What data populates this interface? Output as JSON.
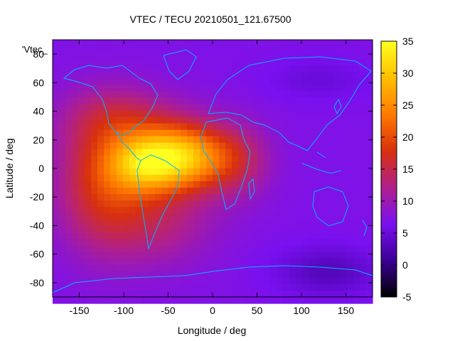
{
  "chart_data": {
    "type": "heatmap",
    "title": "VTEC / TECU 20210501_121.67500",
    "xlabel": "Longitude / deg",
    "ylabel": "Latitude / deg",
    "xlim": [
      -180,
      180
    ],
    "ylim": [
      -90,
      90
    ],
    "xticks": [
      -150,
      -100,
      -50,
      0,
      50,
      100,
      150
    ],
    "yticks": [
      -80,
      -60,
      -40,
      -20,
      0,
      20,
      40,
      60,
      80
    ],
    "colorbar": {
      "range": [
        -5,
        35
      ],
      "ticks": [
        -5,
        0,
        5,
        10,
        15,
        20,
        25,
        30,
        35
      ],
      "colors": [
        "#000000",
        "#3b0096",
        "#7a10f0",
        "#b0208a",
        "#d8300e",
        "#ff7a00",
        "#ffbf00",
        "#ffff20"
      ]
    },
    "key_label": "'Vtec_",
    "background_level": 7,
    "blobs": [
      {
        "lon": -35,
        "lat": 8,
        "slon": 38,
        "slat": 16,
        "amp": 22
      },
      {
        "lon": -80,
        "lat": 3,
        "slon": 28,
        "slat": 14,
        "amp": 12
      },
      {
        "lon": -125,
        "lat": -8,
        "slon": 35,
        "slat": 32,
        "amp": 10
      },
      {
        "lon": -65,
        "lat": -35,
        "slon": 45,
        "slat": 22,
        "amp": 6
      },
      {
        "lon": -100,
        "lat": 35,
        "slon": 45,
        "slat": 15,
        "amp": 6
      },
      {
        "lon": 30,
        "lat": 5,
        "slon": 25,
        "slat": 18,
        "amp": 5
      },
      {
        "lon": 130,
        "lat": -72,
        "slon": 40,
        "slat": 12,
        "amp": -4
      },
      {
        "lon": 120,
        "lat": 62,
        "slon": 40,
        "slat": 10,
        "amp": -2
      }
    ]
  }
}
